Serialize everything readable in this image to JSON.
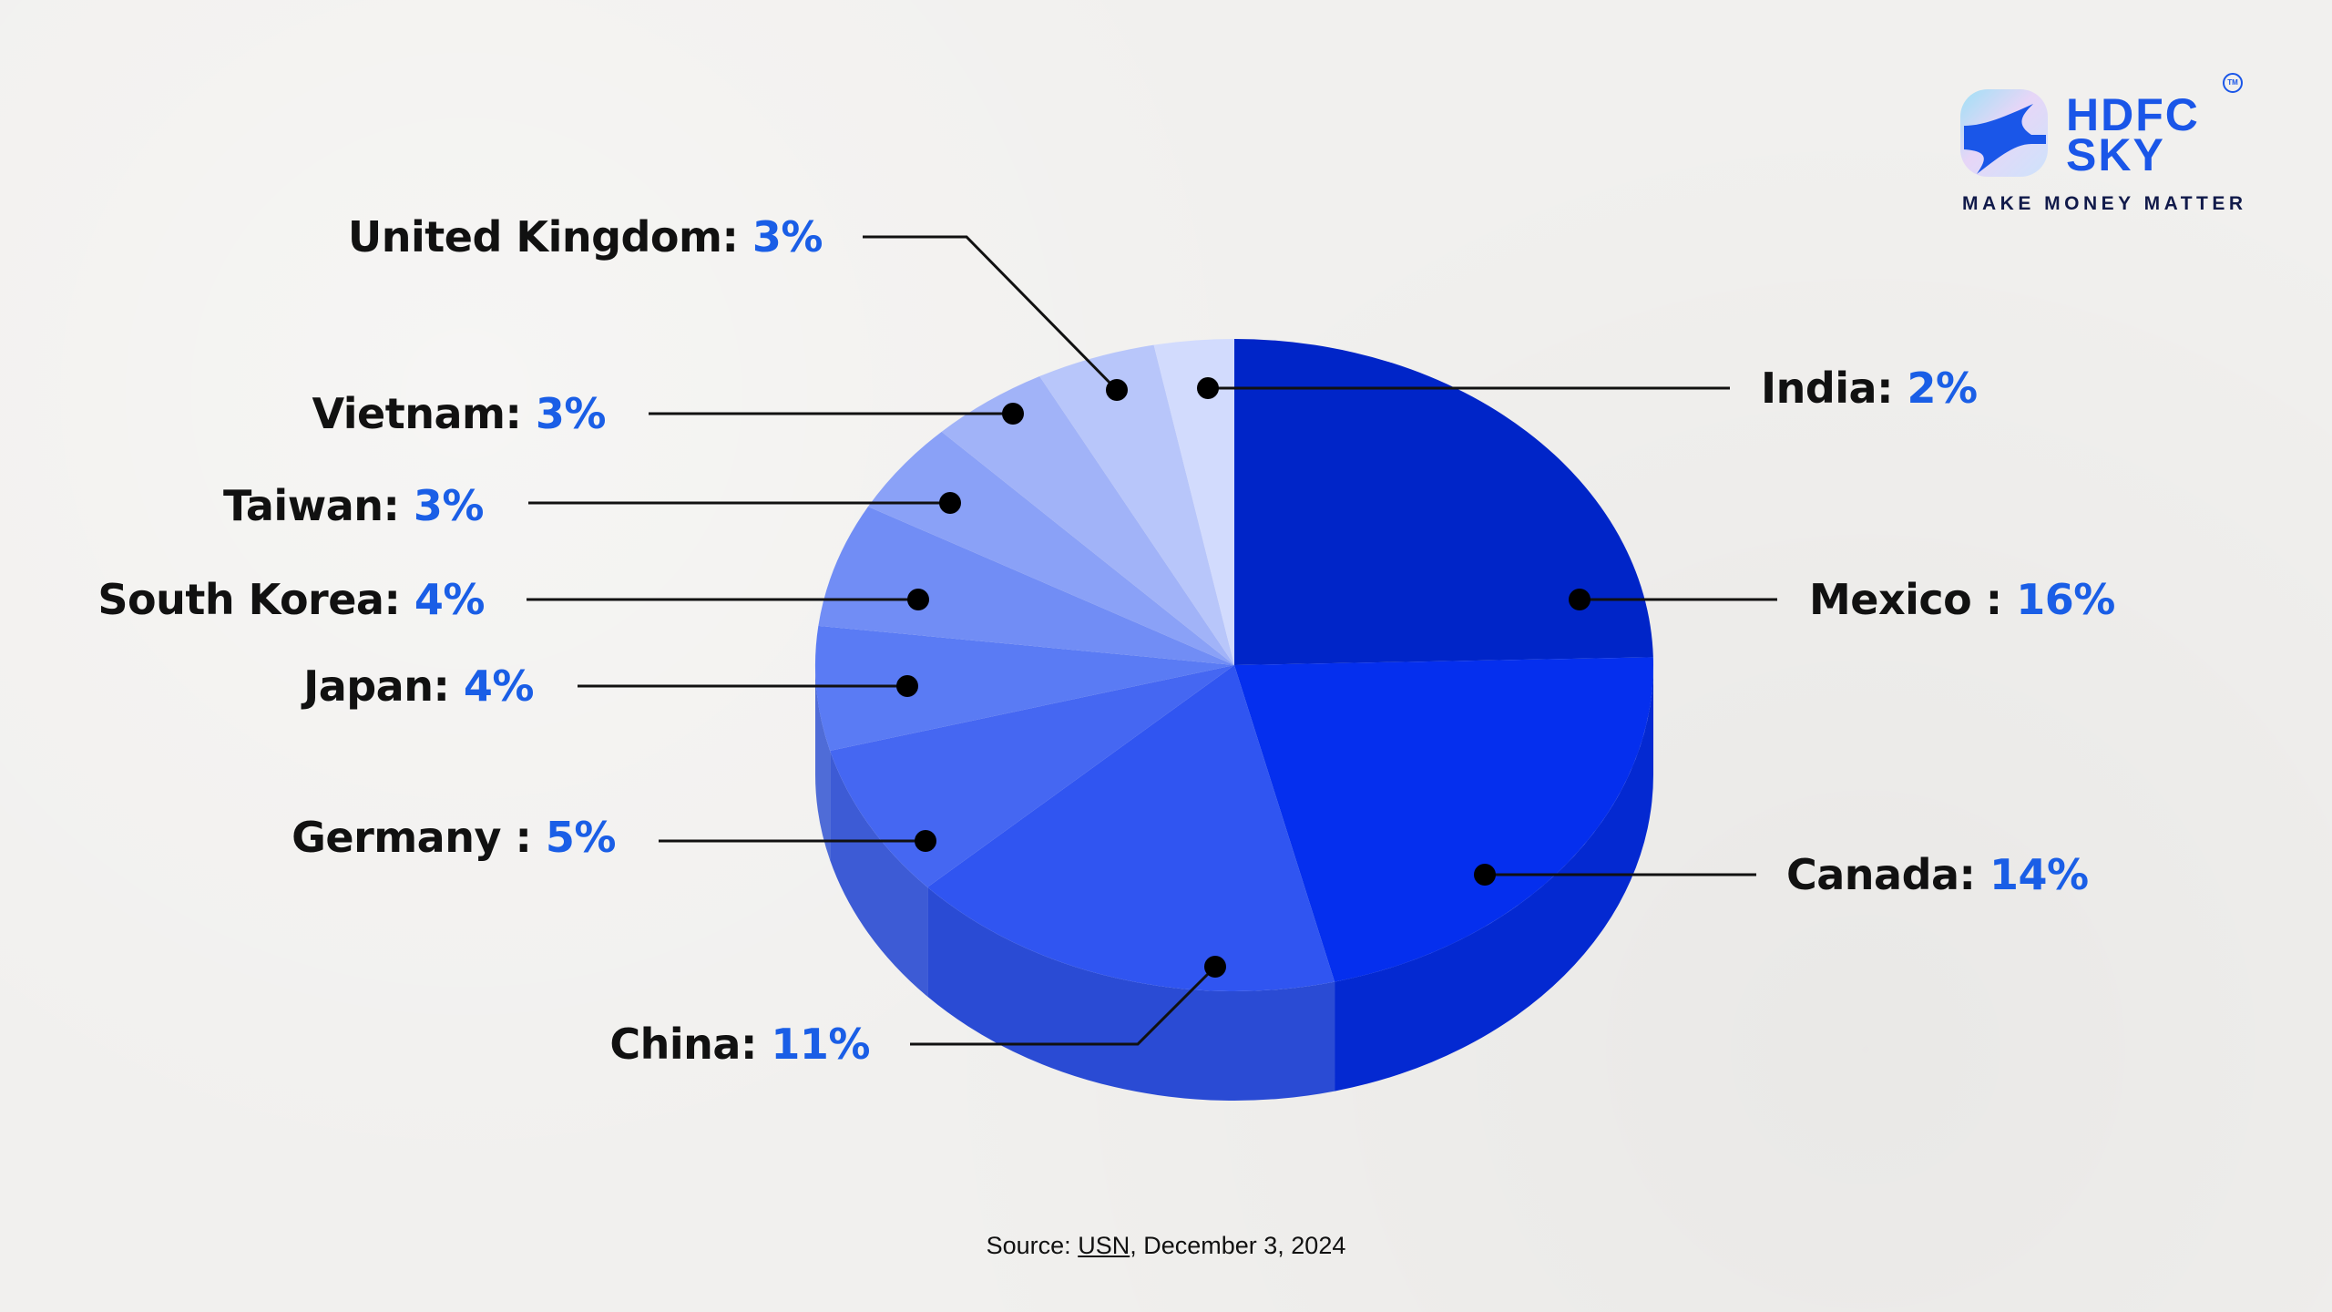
{
  "brand": {
    "name_line1": "HDFC",
    "name_line2": "SKY",
    "trademark": "TM",
    "tagline": "MAKE MONEY MATTER",
    "color": "#1a56e8"
  },
  "source": {
    "prefix": "Source:",
    "link": "USN",
    "rest": ", December 3, 2024"
  },
  "chart_data": {
    "type": "pie",
    "style": "3d",
    "unit": "%",
    "slices": [
      {
        "label": "Mexico :",
        "value": 16,
        "display": "16%",
        "color": "#0025c8"
      },
      {
        "label": "Canada:",
        "value": 14,
        "display": "14%",
        "color": "#052fee"
      },
      {
        "label": "China:",
        "value": 11,
        "display": "11%",
        "color": "#3055f1"
      },
      {
        "label": "Germany :",
        "value": 5,
        "display": "5%",
        "color": "#4567f2"
      },
      {
        "label": "Japan:",
        "value": 4,
        "display": "4%",
        "color": "#5a7bf4"
      },
      {
        "label": "South Korea:",
        "value": 4,
        "display": "4%",
        "color": "#718df5"
      },
      {
        "label": "Taiwan:",
        "value": 3,
        "display": "3%",
        "color": "#8aa1f7"
      },
      {
        "label": "Vietnam:",
        "value": 3,
        "display": "3%",
        "color": "#a1b3f8"
      },
      {
        "label": "United Kingdom:",
        "value": 3,
        "display": "3%",
        "color": "#b8c6fa"
      },
      {
        "label": "India:",
        "value": 2,
        "display": "2%",
        "color": "#d2dbfd"
      }
    ],
    "value_color": "#1a5ee6"
  }
}
